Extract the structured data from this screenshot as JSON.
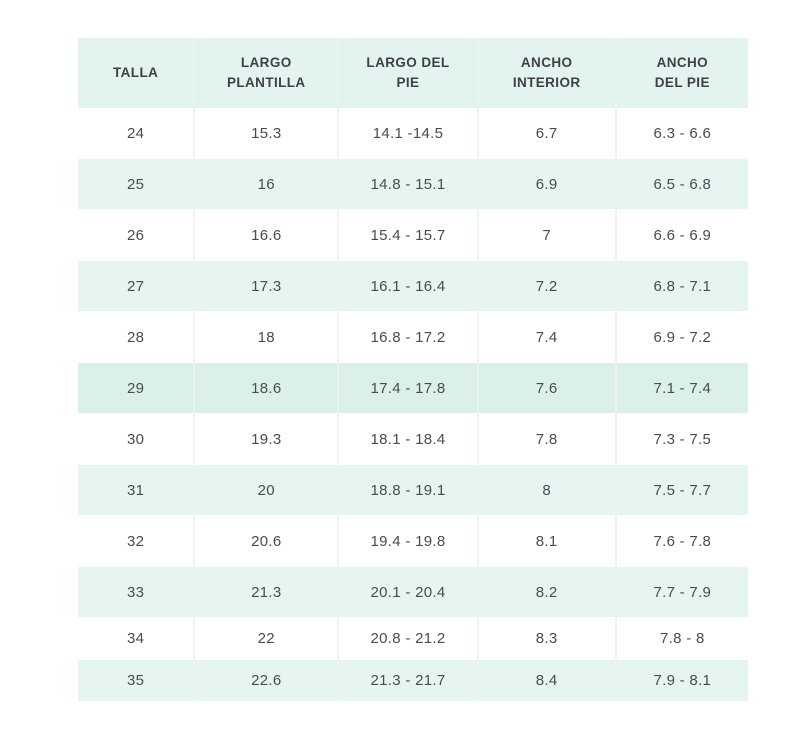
{
  "table": {
    "name": "size-chart",
    "columns": [
      "TALLA",
      "LARGO PLANTILLA",
      "LARGO DEL PIE",
      "ANCHO INTERIOR",
      "ANCHO DEL PIE"
    ],
    "rows": [
      [
        "24",
        "15.3",
        "14.1 -14.5",
        "6.7",
        "6.3 - 6.6"
      ],
      [
        "25",
        "16",
        "14.8 - 15.1",
        "6.9",
        "6.5 - 6.8"
      ],
      [
        "26",
        "16.6",
        "15.4 - 15.7",
        "7",
        "6.6 - 6.9"
      ],
      [
        "27",
        "17.3",
        "16.1 - 16.4",
        "7.2",
        "6.8 - 7.1"
      ],
      [
        "28",
        "18",
        "16.8 - 17.2",
        "7.4",
        "6.9 - 7.2"
      ],
      [
        "29",
        "18.6",
        "17.4 - 17.8",
        "7.6",
        "7.1 - 7.4"
      ],
      [
        "30",
        "19.3",
        "18.1 - 18.4",
        "7.8",
        "7.3 - 7.5"
      ],
      [
        "31",
        "20",
        "18.8 - 19.1",
        "8",
        "7.5 - 7.7"
      ],
      [
        "32",
        "20.6",
        "19.4 - 19.8",
        "8.1",
        "7.6 - 7.8"
      ],
      [
        "33",
        "21.3",
        "20.1 - 20.4",
        "8.2",
        "7.7 - 7.9"
      ],
      [
        "34",
        "22",
        "20.8 - 21.2",
        "8.3",
        "7.8 - 8"
      ],
      [
        "35",
        "22.6",
        "21.3 - 21.7",
        "8.4",
        "7.9 - 8.1"
      ]
    ],
    "highlighted_row": "29",
    "short_rows": [
      "34",
      "35"
    ],
    "colors": {
      "header_bg": "#e3f4f0",
      "row_mint_bg": "#e7f5f2",
      "row_white_bg": "#ffffff",
      "row_highlight_bg": "#daf0e9",
      "header_text": "#3d4145",
      "cell_text": "#484c50",
      "divider": "#eef3f1"
    }
  }
}
